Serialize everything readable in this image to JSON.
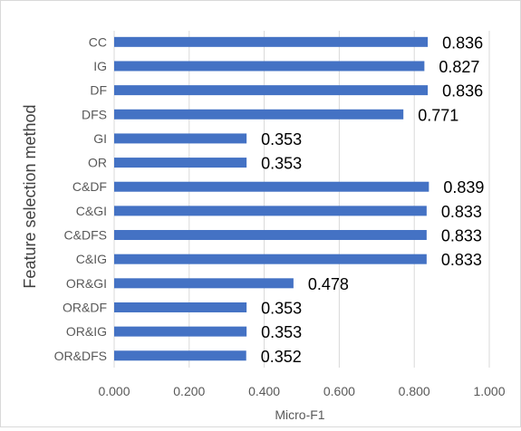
{
  "chart_data": {
    "type": "bar",
    "orientation": "horizontal",
    "title": "",
    "xlabel": "Micro-F1",
    "ylabel": "Feature selection method",
    "xlim": [
      0,
      1
    ],
    "xticks": [
      "0.000",
      "0.200",
      "0.400",
      "0.600",
      "0.800",
      "1.000"
    ],
    "grid": "vertical",
    "legend": "none",
    "bar_color": "#4472C4",
    "categories": [
      "CC",
      "IG",
      "DF",
      "DFS",
      "GI",
      "OR",
      "C&DF",
      "C&GI",
      "C&DFS",
      "C&IG",
      "OR&GI",
      "OR&DF",
      "OR&IG",
      "OR&DFS"
    ],
    "values": [
      0.836,
      0.827,
      0.836,
      0.771,
      0.353,
      0.353,
      0.839,
      0.833,
      0.833,
      0.833,
      0.478,
      0.353,
      0.353,
      0.352
    ],
    "value_labels": [
      "0.836",
      "0.827",
      "0.836",
      "0.771",
      "0.353",
      "0.353",
      "0.839",
      "0.833",
      "0.833",
      "0.833",
      "0.478",
      "0.353",
      "0.353",
      "0.352"
    ]
  }
}
